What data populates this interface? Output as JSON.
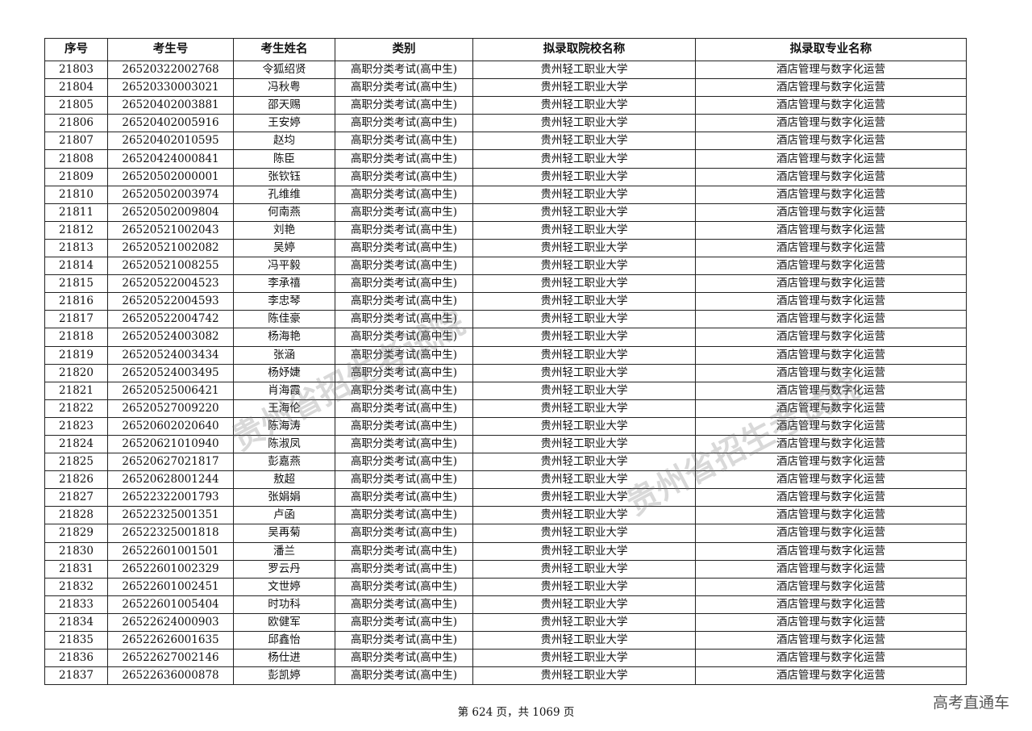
{
  "table": {
    "headers": [
      "序号",
      "考生号",
      "考生姓名",
      "类别",
      "拟录取院校名称",
      "拟录取专业名称"
    ],
    "rows": [
      [
        "21803",
        "26520322002768",
        "令狐绍贤",
        "高职分类考试(高中生)",
        "贵州轻工职业大学",
        "酒店管理与数字化运营"
      ],
      [
        "21804",
        "26520330003021",
        "冯秋粤",
        "高职分类考试(高中生)",
        "贵州轻工职业大学",
        "酒店管理与数字化运营"
      ],
      [
        "21805",
        "26520402003881",
        "邵天赐",
        "高职分类考试(高中生)",
        "贵州轻工职业大学",
        "酒店管理与数字化运营"
      ],
      [
        "21806",
        "26520402005916",
        "王安婷",
        "高职分类考试(高中生)",
        "贵州轻工职业大学",
        "酒店管理与数字化运营"
      ],
      [
        "21807",
        "26520402010595",
        "赵均",
        "高职分类考试(高中生)",
        "贵州轻工职业大学",
        "酒店管理与数字化运营"
      ],
      [
        "21808",
        "26520424000841",
        "陈臣",
        "高职分类考试(高中生)",
        "贵州轻工职业大学",
        "酒店管理与数字化运营"
      ],
      [
        "21809",
        "26520502000001",
        "张钦钰",
        "高职分类考试(高中生)",
        "贵州轻工职业大学",
        "酒店管理与数字化运营"
      ],
      [
        "21810",
        "26520502003974",
        "孔维维",
        "高职分类考试(高中生)",
        "贵州轻工职业大学",
        "酒店管理与数字化运营"
      ],
      [
        "21811",
        "26520502009804",
        "何南燕",
        "高职分类考试(高中生)",
        "贵州轻工职业大学",
        "酒店管理与数字化运营"
      ],
      [
        "21812",
        "26520521002043",
        "刘艳",
        "高职分类考试(高中生)",
        "贵州轻工职业大学",
        "酒店管理与数字化运营"
      ],
      [
        "21813",
        "26520521002082",
        "吴婷",
        "高职分类考试(高中生)",
        "贵州轻工职业大学",
        "酒店管理与数字化运营"
      ],
      [
        "21814",
        "26520521008255",
        "冯平毅",
        "高职分类考试(高中生)",
        "贵州轻工职业大学",
        "酒店管理与数字化运营"
      ],
      [
        "21815",
        "26520522004523",
        "李承禧",
        "高职分类考试(高中生)",
        "贵州轻工职业大学",
        "酒店管理与数字化运营"
      ],
      [
        "21816",
        "26520522004593",
        "李忠琴",
        "高职分类考试(高中生)",
        "贵州轻工职业大学",
        "酒店管理与数字化运营"
      ],
      [
        "21817",
        "26520522004742",
        "陈佳豪",
        "高职分类考试(高中生)",
        "贵州轻工职业大学",
        "酒店管理与数字化运营"
      ],
      [
        "21818",
        "26520524003082",
        "杨海艳",
        "高职分类考试(高中生)",
        "贵州轻工职业大学",
        "酒店管理与数字化运营"
      ],
      [
        "21819",
        "26520524003434",
        "张涵",
        "高职分类考试(高中生)",
        "贵州轻工职业大学",
        "酒店管理与数字化运营"
      ],
      [
        "21820",
        "26520524003495",
        "杨妤婕",
        "高职分类考试(高中生)",
        "贵州轻工职业大学",
        "酒店管理与数字化运营"
      ],
      [
        "21821",
        "26520525006421",
        "肖海霞",
        "高职分类考试(高中生)",
        "贵州轻工职业大学",
        "酒店管理与数字化运营"
      ],
      [
        "21822",
        "26520527009220",
        "王海伦",
        "高职分类考试(高中生)",
        "贵州轻工职业大学",
        "酒店管理与数字化运营"
      ],
      [
        "21823",
        "26520602020640",
        "陈海涛",
        "高职分类考试(高中生)",
        "贵州轻工职业大学",
        "酒店管理与数字化运营"
      ],
      [
        "21824",
        "26520621010940",
        "陈淑凤",
        "高职分类考试(高中生)",
        "贵州轻工职业大学",
        "酒店管理与数字化运营"
      ],
      [
        "21825",
        "26520627021817",
        "彭嘉燕",
        "高职分类考试(高中生)",
        "贵州轻工职业大学",
        "酒店管理与数字化运营"
      ],
      [
        "21826",
        "26520628001244",
        "敖超",
        "高职分类考试(高中生)",
        "贵州轻工职业大学",
        "酒店管理与数字化运营"
      ],
      [
        "21827",
        "26522322001793",
        "张娟娟",
        "高职分类考试(高中生)",
        "贵州轻工职业大学",
        "酒店管理与数字化运营"
      ],
      [
        "21828",
        "26522325001351",
        "卢函",
        "高职分类考试(高中生)",
        "贵州轻工职业大学",
        "酒店管理与数字化运营"
      ],
      [
        "21829",
        "26522325001818",
        "吴再菊",
        "高职分类考试(高中生)",
        "贵州轻工职业大学",
        "酒店管理与数字化运营"
      ],
      [
        "21830",
        "26522601001501",
        "潘兰",
        "高职分类考试(高中生)",
        "贵州轻工职业大学",
        "酒店管理与数字化运营"
      ],
      [
        "21831",
        "26522601002329",
        "罗云丹",
        "高职分类考试(高中生)",
        "贵州轻工职业大学",
        "酒店管理与数字化运营"
      ],
      [
        "21832",
        "26522601002451",
        "文世婷",
        "高职分类考试(高中生)",
        "贵州轻工职业大学",
        "酒店管理与数字化运营"
      ],
      [
        "21833",
        "26522601005404",
        "时功科",
        "高职分类考试(高中生)",
        "贵州轻工职业大学",
        "酒店管理与数字化运营"
      ],
      [
        "21834",
        "26522624000903",
        "欧健军",
        "高职分类考试(高中生)",
        "贵州轻工职业大学",
        "酒店管理与数字化运营"
      ],
      [
        "21835",
        "26522626001635",
        "邱鑫怡",
        "高职分类考试(高中生)",
        "贵州轻工职业大学",
        "酒店管理与数字化运营"
      ],
      [
        "21836",
        "26522627002146",
        "杨仕进",
        "高职分类考试(高中生)",
        "贵州轻工职业大学",
        "酒店管理与数字化运营"
      ],
      [
        "21837",
        "26522636000878",
        "彭凯婷",
        "高职分类考试(高中生)",
        "贵州轻工职业大学",
        "酒店管理与数字化运营"
      ]
    ]
  },
  "footer": {
    "page_text": "第 624 页，共 1069 页"
  },
  "watermark": {
    "brand": "高考直通车",
    "stamp": "贵州省招生考试院"
  }
}
